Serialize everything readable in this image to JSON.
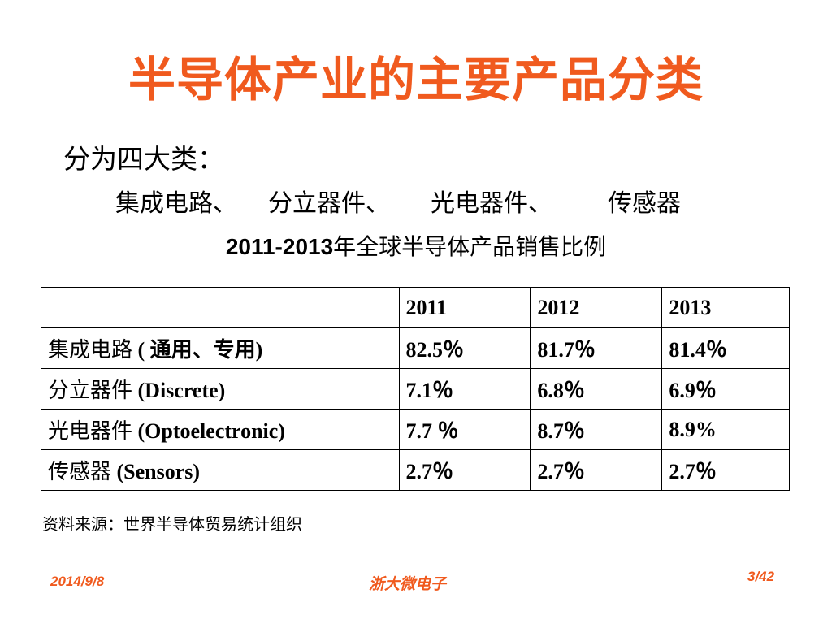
{
  "slide": {
    "title": "半导体产业的主要产品分类",
    "subtitle": "分为四大类：",
    "categories": [
      "集成电路、",
      "分立器件、",
      "光电器件、",
      "传感器"
    ],
    "table_caption_years": "2011-2013",
    "table_caption_text": "年全球半导体产品销售比例"
  },
  "table": {
    "headers": [
      "",
      "2011",
      "2012",
      "2013"
    ],
    "rows": [
      {
        "label_cn": "集成电路",
        "label_en": " (  通用、专用)",
        "values": [
          "82.5％",
          "81.7％",
          "81.4％"
        ]
      },
      {
        "label_cn": "分立器件",
        "label_en": " (Discrete)",
        "values": [
          "7.1％",
          "6.8％",
          "6.9％"
        ]
      },
      {
        "label_cn": "光电器件",
        "label_en": " (Optoelectronic)",
        "values": [
          "7.7 ％",
          "8.7％",
          "8.9%"
        ]
      },
      {
        "label_cn": "传感器",
        "label_en": " (Sensors)",
        "values": [
          "2.7％",
          "2.7％",
          "2.7％"
        ]
      }
    ]
  },
  "source": "资料来源：世界半导体贸易统计组织",
  "footer": {
    "date": "2014/9/8",
    "organization": "浙大微电子",
    "page": "3/42"
  },
  "colors": {
    "accent": "#f05a1e",
    "text": "#000000",
    "background": "#ffffff"
  }
}
